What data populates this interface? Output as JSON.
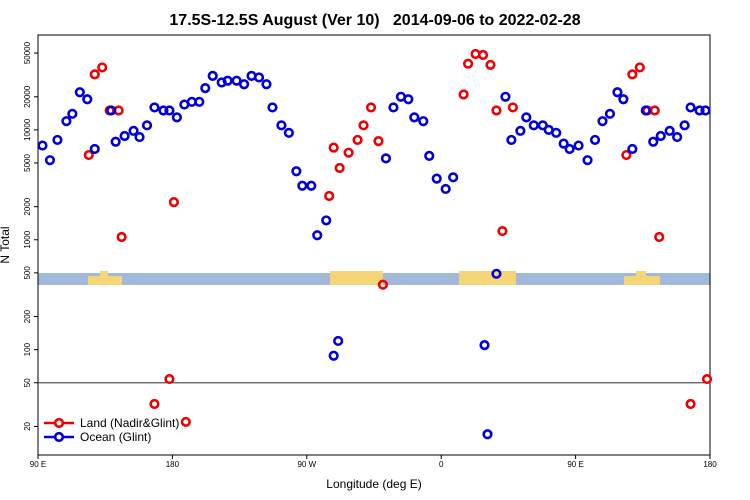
{
  "chart_data": {
    "type": "scatter",
    "title": "17.5S-12.5S August (Ver 10)   2014-09-06 to 2022-02-28",
    "xlabel": "Longitude (deg E)",
    "ylabel": "N Total",
    "log_y": true,
    "legend": "bottom-left",
    "hline": 50,
    "hline_color": "#555555",
    "xlim": [
      90,
      540
    ],
    "ylim": [
      11,
      73000
    ],
    "xticks": [
      {
        "value": 90,
        "label": "90 E"
      },
      180,
      {
        "value": 270,
        "label": "90 W"
      },
      {
        "value": 360,
        "label": "0"
      },
      {
        "value": 450,
        "label": "90 E"
      },
      {
        "value": 540,
        "label": "180"
      }
    ],
    "yticks": [
      20,
      50,
      100,
      200,
      500,
      1000,
      2000,
      5000,
      10000,
      20000,
      50000
    ],
    "series": [
      {
        "name": "Land (Nadir&Glint)",
        "color": "#ee0000",
        "x": [
          124,
          128,
          133,
          138,
          144,
          146,
          178,
          181,
          168,
          189,
          285,
          288,
          292,
          298,
          304,
          308,
          313,
          318,
          321,
          375,
          378,
          383,
          388,
          393,
          397,
          401,
          408,
          484,
          488,
          493,
          498,
          503,
          506,
          527,
          538
        ],
        "values": [
          5900,
          32000,
          37000,
          15000,
          15000,
          1060,
          54,
          2200,
          32,
          22,
          2500,
          6900,
          4500,
          6200,
          8100,
          11000,
          16000,
          7900,
          390,
          21000,
          40000,
          49000,
          48000,
          39000,
          15000,
          1200,
          16000,
          5900,
          32000,
          37000,
          15000,
          15000,
          1060,
          32,
          54
        ]
      },
      {
        "name": "Ocean (Glint)",
        "color": "#0000dd",
        "x": [
          93,
          98,
          103,
          109,
          113,
          118,
          123,
          128,
          139,
          142,
          148,
          154,
          158,
          163,
          168,
          174,
          178,
          183,
          188,
          193,
          198,
          202,
          207,
          213,
          217,
          223,
          228,
          233,
          238,
          243,
          247,
          253,
          258,
          263,
          267,
          273,
          277,
          283,
          288,
          291,
          323,
          328,
          333,
          338,
          342,
          348,
          352,
          357,
          363,
          368,
          389,
          391,
          397,
          403,
          407,
          413,
          417,
          422,
          428,
          432,
          437,
          442,
          446,
          452,
          458,
          463,
          468,
          473,
          478,
          482,
          488,
          497,
          502,
          507,
          513,
          518,
          523,
          527,
          533,
          537
        ],
        "values": [
          7200,
          5300,
          8100,
          12000,
          14000,
          22000,
          19000,
          6700,
          15000,
          7800,
          8800,
          9800,
          8600,
          11000,
          16000,
          15000,
          15000,
          13000,
          17000,
          18000,
          18000,
          24000,
          31000,
          27000,
          28000,
          28000,
          26000,
          31000,
          30000,
          26000,
          16000,
          11000,
          9400,
          4200,
          3100,
          3100,
          1100,
          1500,
          88,
          120,
          5500,
          16000,
          20000,
          19000,
          13000,
          12000,
          5800,
          3600,
          2900,
          3700,
          110,
          17,
          490,
          20000,
          8100,
          9800,
          13000,
          11000,
          11000,
          10000,
          9400,
          7500,
          6700,
          7200,
          5300,
          8100,
          12000,
          14000,
          22000,
          19000,
          6700,
          15000,
          7800,
          8800,
          9800,
          8600,
          11000,
          16000,
          15000,
          15000
        ]
      }
    ]
  }
}
